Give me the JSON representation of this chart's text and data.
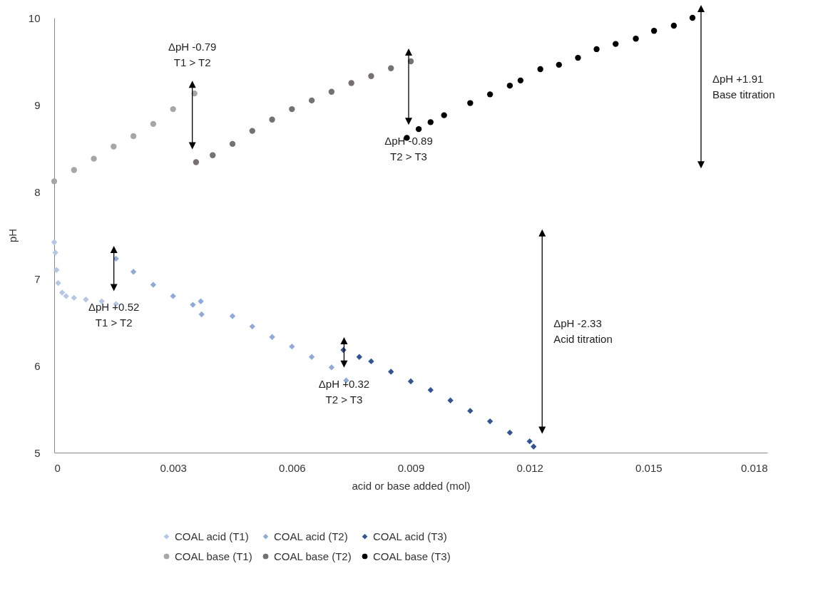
{
  "chart_data": {
    "type": "scatter",
    "xlabel": "acid or base added (mol)",
    "ylabel": "pH",
    "xlim": [
      0,
      0.018
    ],
    "xticks": [
      0,
      0.003,
      0.006,
      0.009,
      0.012,
      0.015,
      0.018
    ],
    "ylim": [
      5,
      10
    ],
    "yticks": [
      5,
      6,
      7,
      8,
      9,
      10
    ],
    "grid": false,
    "legend": "bottom",
    "series": [
      {
        "name": "COAL acid (T1)",
        "color": "#b4c7e7",
        "marker": "diamond",
        "x": [
          0,
          3e-05,
          6e-05,
          0.0001,
          0.0002,
          0.0003,
          0.0005,
          0.0008,
          0.0012,
          0.00156
        ],
        "values": [
          7.42,
          7.3,
          7.1,
          6.95,
          6.84,
          6.8,
          6.78,
          6.76,
          6.74,
          6.71
        ]
      },
      {
        "name": "COAL acid (T2)",
        "color": "#8faadc",
        "marker": "diamond",
        "x": [
          0.00156,
          0.002,
          0.0025,
          0.003,
          0.0035,
          0.00372,
          0.0037,
          0.0045,
          0.005,
          0.0055,
          0.006,
          0.0065,
          0.007,
          0.00737
        ],
        "values": [
          7.23,
          7.08,
          6.93,
          6.8,
          6.7,
          6.59,
          6.74,
          6.57,
          6.45,
          6.33,
          6.22,
          6.1,
          5.98,
          5.83
        ]
      },
      {
        "name": "COAL acid (T3)",
        "color": "#2f5597",
        "marker": "diamond",
        "x": [
          0.0073,
          0.0077,
          0.008,
          0.0085,
          0.009,
          0.0095,
          0.01,
          0.0105,
          0.011,
          0.0115,
          0.012,
          0.0121
        ],
        "values": [
          6.18,
          6.1,
          6.05,
          5.93,
          5.82,
          5.72,
          5.6,
          5.48,
          5.36,
          5.23,
          5.13,
          5.07
        ]
      },
      {
        "name": "COAL base (T1)",
        "color": "#a6a6a6",
        "marker": "circle",
        "x": [
          0,
          0.0005,
          0.001,
          0.0015,
          0.002,
          0.0025,
          0.003,
          0.00354
        ],
        "values": [
          8.12,
          8.25,
          8.38,
          8.52,
          8.64,
          8.78,
          8.95,
          9.13
        ]
      },
      {
        "name": "COAL base (T2)",
        "color": "#767171",
        "marker": "circle",
        "x": [
          0.00358,
          0.004,
          0.0045,
          0.005,
          0.0055,
          0.006,
          0.0065,
          0.007,
          0.0075,
          0.008,
          0.0085,
          0.009
        ],
        "values": [
          8.34,
          8.42,
          8.55,
          8.7,
          8.83,
          8.95,
          9.05,
          9.15,
          9.25,
          9.33,
          9.42,
          9.5
        ]
      },
      {
        "name": "COAL base (T3)",
        "color": "#000000",
        "marker": "circle",
        "x": [
          0.0089,
          0.0092,
          0.0095,
          0.00984,
          0.0105,
          0.011,
          0.0115,
          0.01177,
          0.01227,
          0.01274,
          0.01322,
          0.01369,
          0.01417,
          0.01468,
          0.01514,
          0.01564,
          0.01611
        ],
        "values": [
          8.62,
          8.72,
          8.8,
          8.88,
          9.02,
          9.12,
          9.22,
          9.28,
          9.41,
          9.46,
          9.54,
          9.64,
          9.7,
          9.76,
          9.85,
          9.91,
          10.0
        ]
      }
    ],
    "annotations": [
      "ΔpH +0.52\nT1 > T2",
      "ΔpH +0.32\nT2 > T3",
      "ΔpH -2.33\nAcid titration",
      "ΔpH -0.79\nT1 > T2",
      "ΔpH -0.89\nT2 > T3",
      "ΔpH +1.91\nBase titration"
    ]
  }
}
